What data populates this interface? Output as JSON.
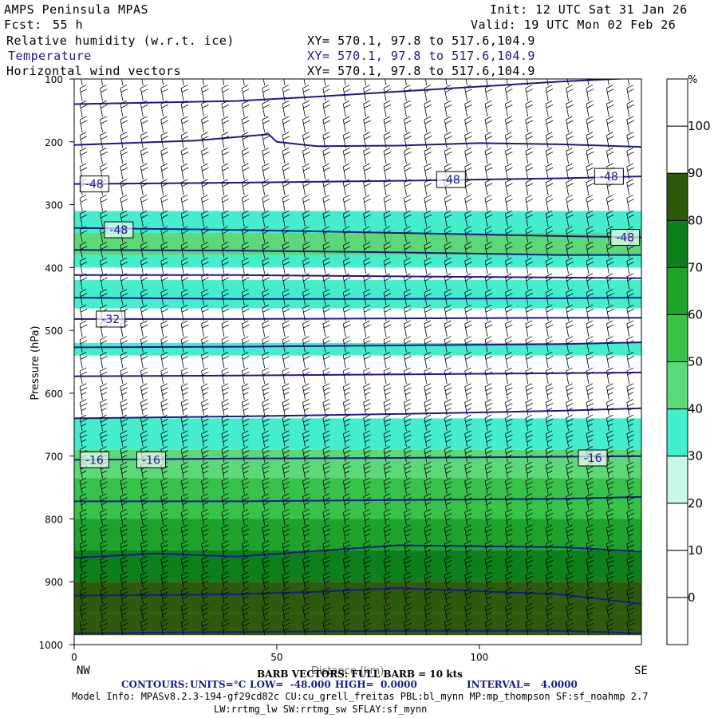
{
  "header": {
    "model": "AMPS Peninsula MPAS",
    "fcst_label": "Fcst:",
    "fcst_value": "55 h",
    "init": "Init: 12 UTC Sat 31 Jan 26",
    "valid": "Valid: 19 UTC Mon 02 Feb 26",
    "fields": [
      {
        "name": "Relative humidity (w.r.t. ice)",
        "xy": "XY= 570.1, 97.8 to 517.6,104.9"
      },
      {
        "name": "Temperature",
        "xy": "XY= 570.1, 97.8 to 517.6,104.9"
      },
      {
        "name": "Horizontal wind vectors",
        "xy": "XY= 570.1, 97.8 to 517.6,104.9"
      }
    ]
  },
  "colors": {
    "contour": "#1a1a8c",
    "rh_levels": [
      "#ffffff",
      "#ffffff",
      "#ffffff",
      "#c8f8ea",
      "#44eecc",
      "#5dd879",
      "#37c24a",
      "#1da32c",
      "#0d7f1c",
      "#2f5a0d"
    ]
  },
  "chart_data": {
    "type": "cross-section",
    "xlabel": "Distance (km)",
    "ylabel": "Pressure (hPa)",
    "xlim": [
      0,
      140
    ],
    "ylim": [
      1000,
      100
    ],
    "x_ticks": [
      0,
      50,
      100
    ],
    "y_ticks": [
      100,
      200,
      300,
      400,
      500,
      600,
      700,
      800,
      900,
      1000
    ],
    "left_end": "NW",
    "right_end": "SE",
    "colorbar": {
      "unit": "%",
      "levels": [
        -10,
        0,
        10,
        20,
        30,
        40,
        50,
        60,
        70,
        80,
        90,
        100,
        110
      ],
      "tick_labels": [
        0,
        10,
        20,
        30,
        40,
        50,
        60,
        70,
        80,
        90,
        100
      ]
    },
    "rh_bands": [
      {
        "p_top": 310,
        "p_bot": 345,
        "rh": 35
      },
      {
        "p_top": 345,
        "p_bot": 380,
        "rh": 45
      },
      {
        "p_top": 380,
        "p_bot": 400,
        "rh": 38
      },
      {
        "p_top": 420,
        "p_bot": 465,
        "rh": 32
      },
      {
        "p_top": 520,
        "p_bot": 540,
        "rh": 31
      },
      {
        "p_top": 640,
        "p_bot": 690,
        "rh": 33
      },
      {
        "p_top": 690,
        "p_bot": 735,
        "rh": 45
      },
      {
        "p_top": 735,
        "p_bot": 800,
        "rh": 52
      },
      {
        "p_top": 800,
        "p_bot": 850,
        "rh": 62
      },
      {
        "p_top": 850,
        "p_bot": 900,
        "rh": 72
      },
      {
        "p_top": 900,
        "p_bot": 950,
        "rh": 80
      },
      {
        "p_top": 950,
        "p_bot": 985,
        "rh": 88
      }
    ],
    "temperature_contours": [
      {
        "x": [
          0,
          40,
          60,
          80,
          100,
          120,
          140
        ],
        "p": [
          140,
          135,
          128,
          120,
          112,
          104,
          98
        ]
      },
      {
        "x": [
          0,
          30,
          48,
          50,
          60,
          80,
          100,
          120,
          140
        ],
        "p": [
          205,
          198,
          188,
          200,
          207,
          206,
          202,
          204,
          208
        ]
      },
      {
        "x": [
          0,
          40,
          80,
          120,
          140
        ],
        "p": [
          267,
          265,
          262,
          258,
          255
        ]
      },
      {
        "x": [
          0,
          40,
          80,
          120,
          140
        ],
        "p": [
          337,
          340,
          345,
          350,
          352
        ]
      },
      {
        "x": [
          0,
          40,
          80,
          120,
          140
        ],
        "p": [
          372,
          373,
          376,
          380,
          380
        ]
      },
      {
        "x": [
          0,
          40,
          80,
          120,
          140
        ],
        "p": [
          412,
          412,
          414,
          416,
          417
        ]
      },
      {
        "x": [
          0,
          40,
          80,
          120,
          140
        ],
        "p": [
          448,
          450,
          450,
          449,
          448
        ]
      },
      {
        "x": [
          0,
          40,
          80,
          120,
          140
        ],
        "p": [
          482,
          482,
          481,
          480,
          480
        ]
      },
      {
        "x": [
          0,
          40,
          80,
          120,
          140
        ],
        "p": [
          527,
          526,
          524,
          522,
          519
        ]
      },
      {
        "x": [
          0,
          40,
          80,
          120,
          140
        ],
        "p": [
          573,
          572,
          570,
          568,
          567
        ]
      },
      {
        "x": [
          0,
          40,
          80,
          120,
          140
        ],
        "p": [
          640,
          637,
          633,
          628,
          624
        ]
      },
      {
        "x": [
          0,
          40,
          80,
          120,
          140
        ],
        "p": [
          706,
          704,
          703,
          701,
          700
        ]
      },
      {
        "x": [
          0,
          40,
          80,
          120,
          140
        ],
        "p": [
          772,
          772,
          770,
          768,
          765
        ]
      },
      {
        "x": [
          0,
          20,
          40,
          80,
          120,
          140
        ],
        "p": [
          862,
          855,
          860,
          842,
          845,
          852
        ]
      },
      {
        "x": [
          0,
          40,
          60,
          80,
          120,
          140
        ],
        "p": [
          922,
          920,
          916,
          910,
          920,
          935
        ]
      },
      {
        "x": [
          0,
          40,
          80,
          120,
          140
        ],
        "p": [
          982,
          980,
          978,
          978,
          982
        ]
      }
    ],
    "temperature_labels": [
      {
        "text": "-48",
        "x": 5,
        "p": 267
      },
      {
        "text": "-48",
        "x": 93,
        "p": 260
      },
      {
        "text": "-48",
        "x": 132,
        "p": 255
      },
      {
        "text": "-48",
        "x": 11,
        "p": 340
      },
      {
        "text": "-48",
        "x": 136,
        "p": 352
      },
      {
        "text": "-32",
        "x": 9,
        "p": 482
      },
      {
        "text": "-16",
        "x": 5,
        "p": 706
      },
      {
        "text": "-16",
        "x": 19,
        "p": 706
      },
      {
        "text": "-16",
        "x": 128,
        "p": 703
      }
    ],
    "footer": {
      "barb_note": "BARB VECTORS: FULL BARB = 10 kts",
      "contours_label": "CONTOURS:",
      "units": "UNITS=°C",
      "low": "LOW=  -48.000",
      "high": "HIGH=  0.0000",
      "interval": "INTERVAL=   4.0000",
      "model_info_1": "Model Info: MPASv8.2.3-194-gf29cd82c CU:cu_grell_freitas PBL:bl_mynn MP:mp_thompson SF:sf_noahmp 2.7",
      "model_info_2": "LW:rrtmg_lw SW:rrtmg_sw SFLAY:sf_mynn"
    }
  }
}
